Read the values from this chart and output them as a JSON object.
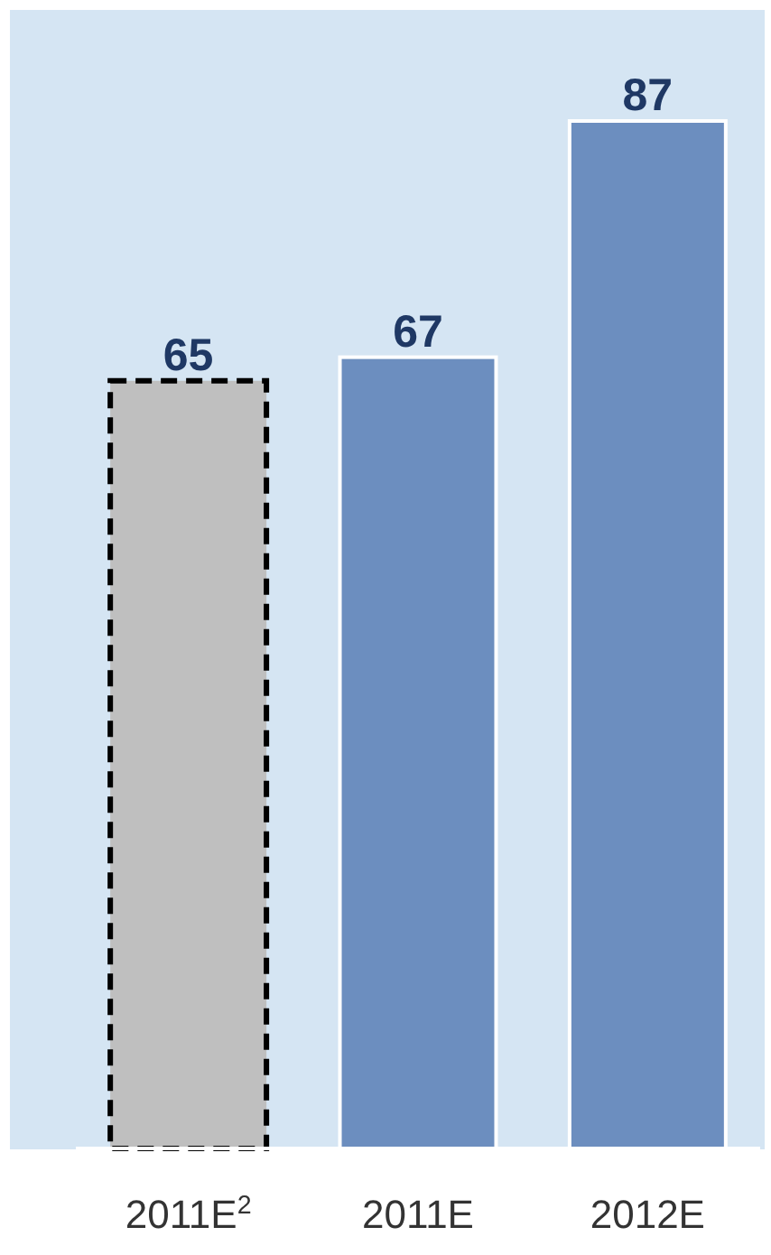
{
  "chart_data": {
    "type": "bar",
    "categories": [
      "2011E$^{2}$",
      "2011E",
      "2012E"
    ],
    "series": [
      {
        "color": "#bfbfbf",
        "line_style": "dashed",
        "values": [
          65,
          null,
          null
        ]
      },
      {
        "color": "#6c8ebf",
        "line_style": "solid",
        "values": [
          null,
          67,
          87
        ]
      }
    ],
    "ylim": [
      0,
      87
    ],
    "tick_labels": "x",
    "data_labels": true
  }
}
